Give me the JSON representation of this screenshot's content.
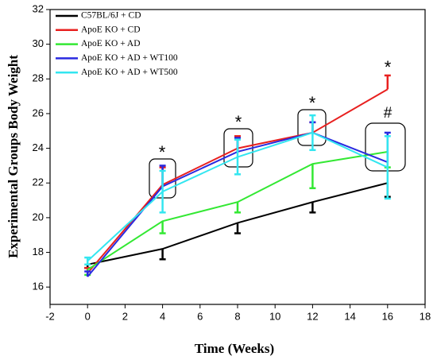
{
  "chart_data": {
    "type": "line",
    "x_label": "Time (Weeks)",
    "y_label": "Experimental Groups Body Weight",
    "x": [
      0,
      4,
      8,
      12,
      16
    ],
    "series": [
      {
        "name": "C57BL/6J + CD",
        "color": "#000000",
        "values": [
          17.3,
          18.2,
          19.7,
          20.9,
          22.0
        ],
        "errors": [
          0.2,
          0.6,
          0.6,
          0.6,
          0.8
        ],
        "error_direction": "down"
      },
      {
        "name": "ApoE KO + CD",
        "color": "#e8201f",
        "values": [
          16.8,
          21.9,
          24.0,
          24.9,
          27.4
        ],
        "errors": [
          0.3,
          1.0,
          0.7,
          0.6,
          0.8
        ],
        "error_direction": "up"
      },
      {
        "name": "ApoE KO + AD",
        "color": "#33e833",
        "values": [
          17.0,
          19.8,
          20.9,
          23.1,
          23.8
        ],
        "errors": [
          0.3,
          0.7,
          0.6,
          1.4,
          0.9
        ],
        "error_direction": "down"
      },
      {
        "name": "ApoE KO + AD + WT100",
        "color": "#2a2ae0",
        "values": [
          16.6,
          21.8,
          23.8,
          24.9,
          23.2
        ],
        "errors": [
          0.3,
          1.2,
          0.8,
          0.6,
          1.7
        ],
        "error_direction": "up"
      },
      {
        "name": "ApoE KO + AD + WT500",
        "color": "#33e6f0",
        "values": [
          17.5,
          21.5,
          23.5,
          24.9,
          22.9
        ],
        "errors": [
          0.2,
          1.2,
          1.0,
          1.0,
          1.8
        ],
        "error_direction": "both"
      }
    ],
    "annotations": [
      "*",
      "*",
      "*",
      "*",
      "#"
    ],
    "xlim": [
      -2,
      18
    ],
    "xticks": [
      -2,
      0,
      2,
      4,
      6,
      8,
      10,
      12,
      14,
      16,
      18
    ],
    "ylim": [
      15,
      32
    ],
    "yticks": [
      16,
      18,
      20,
      22,
      24,
      26,
      28,
      30,
      32
    ],
    "legend": "upper left"
  }
}
